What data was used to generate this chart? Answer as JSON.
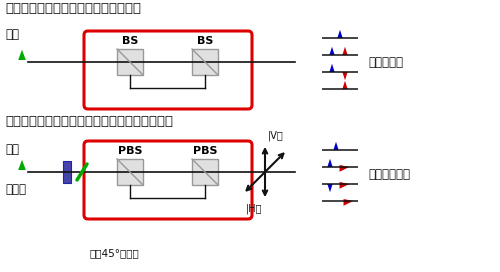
{
  "title1": "通常の非対象マッハツェンダー干渉計",
  "title2": "ハイブリッド量子もつれ光源に使用した干渉計",
  "label_bs": "BS",
  "label_pbs": "PBS",
  "label_photon": "光子",
  "label_waveplate": "波長板",
  "label_rotation": "偏光45°　回転",
  "label_polarization_free": "偏光無依存",
  "label_polarization_weighted": "偏光情報重畳",
  "label_V": "|V〉",
  "label_H": "|H〉",
  "color_red_box": "#dd0000",
  "color_blue": "#0000cc",
  "color_red_tri": "#cc0000",
  "color_green": "#00aa00",
  "color_gray": "#999999",
  "color_dark": "#111111",
  "color_box_fill": "#e0e0e0",
  "bg_color": "#ffffff",
  "title_fontsize": 9.5,
  "label_fontsize": 8.5,
  "small_fontsize": 7.5,
  "bs_fontsize": 8,
  "anno_fontsize": 7
}
